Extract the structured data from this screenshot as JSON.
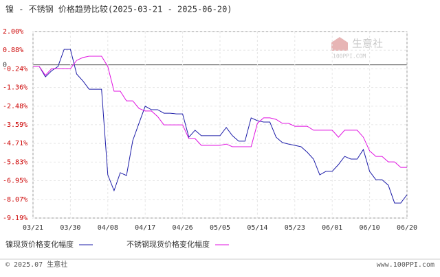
{
  "chart_data": {
    "type": "line",
    "title": "镍 - 不锈钢 价格趋势比较(2025-03-21 - 2025-06-20)",
    "categories": [
      "03/21",
      null,
      null,
      null,
      null,
      null,
      "03/30",
      null,
      null,
      null,
      null,
      null,
      "04/08",
      null,
      null,
      null,
      null,
      null,
      "04/17",
      null,
      null,
      null,
      null,
      null,
      "04/26",
      null,
      null,
      null,
      null,
      null,
      "05/05",
      null,
      null,
      null,
      null,
      null,
      "05/14",
      null,
      null,
      null,
      null,
      null,
      "05/23",
      null,
      null,
      null,
      null,
      null,
      "06/01",
      null,
      null,
      null,
      null,
      null,
      "06/10",
      null,
      null,
      null,
      null,
      null,
      "06/20"
    ],
    "series": [
      {
        "name": "镍现货价格变化幅度",
        "color": "#1c1ca8",
        "values": [
          -0.1,
          -0.1,
          -0.72,
          -0.35,
          -0.1,
          0.93,
          0.93,
          -0.55,
          -0.96,
          -1.46,
          -1.46,
          -1.46,
          -6.6,
          -7.55,
          -6.47,
          -6.64,
          -4.54,
          -3.51,
          -2.48,
          -2.69,
          -2.69,
          -2.9,
          -2.9,
          -2.94,
          -2.94,
          -4.34,
          -3.92,
          -4.25,
          -4.25,
          -4.25,
          -4.25,
          -3.76,
          -4.25,
          -4.58,
          -4.58,
          -3.18,
          -3.35,
          -3.43,
          -3.43,
          -4.34,
          -4.66,
          -4.75,
          -4.83,
          -4.91,
          -5.24,
          -5.65,
          -6.6,
          -6.39,
          -6.39,
          -5.98,
          -5.49,
          -5.65,
          -5.65,
          -5.08,
          -6.39,
          -6.89,
          -6.89,
          -7.22,
          -8.29,
          -8.29,
          -7.79
        ]
      },
      {
        "name": "不锈钢现货价格变化幅度",
        "color": "#e010e0",
        "values": [
          -0.1,
          -0.1,
          -0.63,
          -0.22,
          -0.22,
          -0.22,
          -0.22,
          0.27,
          0.44,
          0.52,
          0.52,
          0.52,
          -0.1,
          -1.58,
          -1.58,
          -2.16,
          -2.16,
          -2.61,
          -2.77,
          -2.77,
          -3.1,
          -3.6,
          -3.6,
          -3.6,
          -3.6,
          -4.42,
          -4.42,
          -4.83,
          -4.83,
          -4.83,
          -4.83,
          -4.75,
          -4.91,
          -4.91,
          -4.91,
          -4.91,
          -3.51,
          -3.18,
          -3.18,
          -3.27,
          -3.51,
          -3.51,
          -3.68,
          -3.68,
          -3.68,
          -3.92,
          -3.92,
          -3.92,
          -3.92,
          -4.34,
          -3.92,
          -3.92,
          -3.92,
          -4.34,
          -5.16,
          -5.49,
          -5.49,
          -5.82,
          -5.82,
          -6.15,
          -6.15
        ]
      }
    ],
    "ylim": [
      -9.19,
      2.0
    ],
    "yticks": [
      {
        "value": 2.0,
        "label": "2.00%"
      },
      {
        "value": 0.88,
        "label": "0.88%"
      },
      0,
      {
        "value": -0.24,
        "label": "-0.24%"
      },
      {
        "value": -1.36,
        "label": "-1.36%"
      },
      {
        "value": -2.48,
        "label": "-2.48%"
      },
      {
        "value": -3.59,
        "label": "-3.59%"
      },
      {
        "value": -4.71,
        "label": "-4.71%"
      },
      {
        "value": -5.83,
        "label": "-5.83%"
      },
      {
        "value": -6.95,
        "label": "-6.95%"
      },
      {
        "value": -8.07,
        "label": "-8.07%"
      },
      {
        "value": -9.19,
        "label": "-9.19%"
      }
    ],
    "grid": true,
    "watermark": {
      "name": "生意社",
      "site": "100PPI.COM"
    },
    "footer": {
      "copyright": "© 2025.07 生意社",
      "url": "www.100PPI.com"
    }
  }
}
